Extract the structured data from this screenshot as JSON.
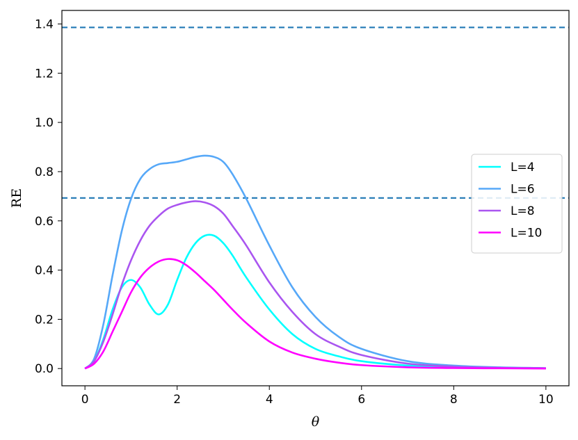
{
  "chart_data": {
    "type": "line",
    "xlabel": "θ",
    "ylabel": "RE",
    "xlim": [
      -0.5,
      10.5
    ],
    "ylim": [
      -0.07,
      1.455
    ],
    "xticks": [
      0,
      2,
      4,
      6,
      8,
      10
    ],
    "xtick_labels": [
      "0",
      "2",
      "4",
      "6",
      "8",
      "10"
    ],
    "yticks": [
      0.0,
      0.2,
      0.4,
      0.6,
      0.8,
      1.0,
      1.2,
      1.4
    ],
    "ytick_labels": [
      "0.0",
      "0.2",
      "0.4",
      "0.6",
      "0.8",
      "1.0",
      "1.2",
      "1.4"
    ],
    "grid": false,
    "legend_position": "center-right",
    "hlines": [
      {
        "y": 1.386,
        "style": "dashed",
        "color": "#1f77b4"
      },
      {
        "y": 0.693,
        "style": "dashed",
        "color": "#1f77b4"
      }
    ],
    "series": [
      {
        "name": "L=4",
        "color": "#00ffff",
        "x": [
          0,
          0.2,
          0.4,
          0.6,
          0.8,
          1.0,
          1.2,
          1.4,
          1.6,
          1.8,
          2.0,
          2.2,
          2.4,
          2.6,
          2.8,
          3.0,
          3.2,
          3.5,
          4.0,
          4.5,
          5.0,
          5.5,
          6.0,
          7.0,
          8.0,
          9.0,
          10.0
        ],
        "y": [
          0.0,
          0.03,
          0.12,
          0.24,
          0.33,
          0.36,
          0.33,
          0.26,
          0.22,
          0.26,
          0.36,
          0.45,
          0.51,
          0.54,
          0.54,
          0.51,
          0.46,
          0.37,
          0.24,
          0.14,
          0.08,
          0.05,
          0.03,
          0.012,
          0.005,
          0.002,
          0.001
        ]
      },
      {
        "name": "L=6",
        "color": "#56a8f8",
        "x": [
          0,
          0.2,
          0.4,
          0.6,
          0.8,
          1.0,
          1.2,
          1.4,
          1.6,
          1.8,
          2.0,
          2.2,
          2.4,
          2.6,
          2.8,
          3.0,
          3.2,
          3.5,
          4.0,
          4.5,
          5.0,
          5.5,
          6.0,
          7.0,
          8.0,
          9.0,
          10.0
        ],
        "y": [
          0.0,
          0.04,
          0.18,
          0.38,
          0.56,
          0.69,
          0.77,
          0.81,
          0.83,
          0.835,
          0.84,
          0.85,
          0.86,
          0.865,
          0.86,
          0.84,
          0.79,
          0.69,
          0.5,
          0.33,
          0.21,
          0.13,
          0.08,
          0.03,
          0.012,
          0.005,
          0.002
        ]
      },
      {
        "name": "L=8",
        "color": "#aa55f0",
        "x": [
          0,
          0.2,
          0.4,
          0.6,
          0.8,
          1.0,
          1.2,
          1.4,
          1.6,
          1.8,
          2.0,
          2.2,
          2.4,
          2.6,
          2.8,
          3.0,
          3.2,
          3.5,
          4.0,
          4.5,
          5.0,
          5.5,
          6.0,
          7.0,
          8.0,
          9.0,
          10.0
        ],
        "y": [
          0.0,
          0.03,
          0.11,
          0.22,
          0.34,
          0.44,
          0.52,
          0.58,
          0.62,
          0.65,
          0.665,
          0.675,
          0.68,
          0.675,
          0.66,
          0.63,
          0.58,
          0.5,
          0.35,
          0.23,
          0.14,
          0.09,
          0.055,
          0.02,
          0.008,
          0.003,
          0.001
        ]
      },
      {
        "name": "L=10",
        "color": "#ff00ff",
        "x": [
          0,
          0.2,
          0.4,
          0.6,
          0.8,
          1.0,
          1.2,
          1.4,
          1.6,
          1.8,
          2.0,
          2.2,
          2.4,
          2.6,
          2.8,
          3.0,
          3.2,
          3.5,
          4.0,
          4.5,
          5.0,
          5.5,
          6.0,
          7.0,
          8.0,
          9.0,
          10.0
        ],
        "y": [
          0.0,
          0.02,
          0.07,
          0.15,
          0.23,
          0.31,
          0.37,
          0.41,
          0.435,
          0.445,
          0.44,
          0.42,
          0.39,
          0.355,
          0.32,
          0.28,
          0.24,
          0.185,
          0.11,
          0.065,
          0.04,
          0.024,
          0.014,
          0.005,
          0.002,
          0.001,
          0.0
        ]
      }
    ]
  }
}
